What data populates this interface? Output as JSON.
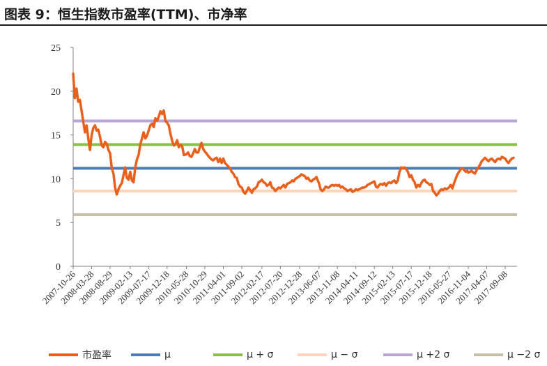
{
  "header": {
    "title": "图表 9：恒生指数市盈率(TTM)、市净率"
  },
  "chart_data": {
    "type": "line",
    "ylim": [
      0,
      25
    ],
    "yticks": [
      "0",
      "5",
      "10",
      "15",
      "20",
      "25"
    ],
    "x_tick_labels": [
      "2007-10-26",
      "2008-03-28",
      "2008-08-29",
      "2009-02-13",
      "2009-07-17",
      "2009-12-18",
      "2010-05-28",
      "2010-10-29",
      "2011-04-01",
      "2011-09-02",
      "2012-02-17",
      "2012-07-20",
      "2012-12-28",
      "2013-06-07",
      "2013-11-08",
      "2014-04-11",
      "2014-09-12",
      "2015-02-13",
      "2015-07-17",
      "2015-12-18",
      "2016-05-27",
      "2016-11-04",
      "2017-04-07",
      "2017-09-08"
    ],
    "series": [
      {
        "name": "市盈率",
        "color": "#e8601c",
        "points": [
          [
            "2007-10-26",
            22.0
          ],
          [
            "2007-11-09",
            19.2
          ],
          [
            "2007-11-23",
            20.3
          ],
          [
            "2007-12-07",
            18.8
          ],
          [
            "2007-12-21",
            19.0
          ],
          [
            "2008-01-04",
            17.8
          ],
          [
            "2008-01-18",
            16.6
          ],
          [
            "2008-02-01",
            15.3
          ],
          [
            "2008-02-15",
            16.1
          ],
          [
            "2008-02-29",
            14.6
          ],
          [
            "2008-03-14",
            13.3
          ],
          [
            "2008-03-28",
            15.0
          ],
          [
            "2008-04-11",
            15.8
          ],
          [
            "2008-04-25",
            16.1
          ],
          [
            "2008-05-09",
            15.5
          ],
          [
            "2008-05-23",
            15.6
          ],
          [
            "2008-06-06",
            14.8
          ],
          [
            "2008-06-20",
            13.8
          ],
          [
            "2008-07-04",
            13.6
          ],
          [
            "2008-07-18",
            14.2
          ],
          [
            "2008-08-01",
            14.0
          ],
          [
            "2008-08-15",
            13.3
          ],
          [
            "2008-08-29",
            12.9
          ],
          [
            "2008-09-12",
            11.2
          ],
          [
            "2008-09-26",
            10.6
          ],
          [
            "2008-10-10",
            9.0
          ],
          [
            "2008-10-24",
            8.2
          ],
          [
            "2008-11-07",
            8.8
          ],
          [
            "2008-11-21",
            9.2
          ],
          [
            "2008-12-05",
            9.5
          ],
          [
            "2008-12-19",
            10.4
          ],
          [
            "2009-01-02",
            11.3
          ],
          [
            "2009-01-16",
            10.1
          ],
          [
            "2009-01-30",
            9.9
          ],
          [
            "2009-02-13",
            10.8
          ],
          [
            "2009-02-27",
            9.8
          ],
          [
            "2009-03-13",
            9.6
          ],
          [
            "2009-03-27",
            11.3
          ],
          [
            "2009-04-10",
            12.2
          ],
          [
            "2009-04-24",
            12.7
          ],
          [
            "2009-05-08",
            13.9
          ],
          [
            "2009-05-22",
            14.6
          ],
          [
            "2009-06-05",
            15.3
          ],
          [
            "2009-06-19",
            14.6
          ],
          [
            "2009-07-03",
            14.9
          ],
          [
            "2009-07-17",
            15.5
          ],
          [
            "2009-07-31",
            16.1
          ],
          [
            "2009-08-14",
            16.3
          ],
          [
            "2009-08-28",
            15.9
          ],
          [
            "2009-09-11",
            16.9
          ],
          [
            "2009-09-25",
            16.6
          ],
          [
            "2009-10-09",
            17.1
          ],
          [
            "2009-10-23",
            17.7
          ],
          [
            "2009-11-06",
            17.4
          ],
          [
            "2009-11-20",
            17.8
          ],
          [
            "2009-12-04",
            16.6
          ],
          [
            "2009-12-18",
            16.4
          ],
          [
            "2010-01-01",
            16.1
          ],
          [
            "2010-01-15",
            15.1
          ],
          [
            "2010-01-29",
            14.3
          ],
          [
            "2010-02-12",
            13.8
          ],
          [
            "2010-02-26",
            14.0
          ],
          [
            "2010-03-12",
            14.4
          ],
          [
            "2010-03-26",
            13.6
          ],
          [
            "2010-04-09",
            13.9
          ],
          [
            "2010-04-23",
            13.7
          ],
          [
            "2010-05-07",
            12.7
          ],
          [
            "2010-05-28",
            12.8
          ],
          [
            "2010-06-11",
            13.0
          ],
          [
            "2010-06-25",
            12.6
          ],
          [
            "2010-07-09",
            12.5
          ],
          [
            "2010-07-23",
            12.9
          ],
          [
            "2010-08-06",
            13.4
          ],
          [
            "2010-08-20",
            13.0
          ],
          [
            "2010-09-03",
            13.0
          ],
          [
            "2010-09-17",
            13.6
          ],
          [
            "2010-10-01",
            14.1
          ],
          [
            "2010-10-15",
            13.4
          ],
          [
            "2010-10-29",
            13.1
          ],
          [
            "2010-11-12",
            12.9
          ],
          [
            "2010-11-26",
            12.6
          ],
          [
            "2010-12-10",
            12.4
          ],
          [
            "2010-12-24",
            12.2
          ],
          [
            "2011-01-07",
            12.1
          ],
          [
            "2011-01-21",
            12.3
          ],
          [
            "2011-02-04",
            12.4
          ],
          [
            "2011-02-18",
            11.9
          ],
          [
            "2011-03-04",
            12.3
          ],
          [
            "2011-03-18",
            11.8
          ],
          [
            "2011-04-01",
            12.3
          ],
          [
            "2011-04-15",
            11.8
          ],
          [
            "2011-04-29",
            11.6
          ],
          [
            "2011-05-13",
            11.4
          ],
          [
            "2011-05-27",
            11.2
          ],
          [
            "2011-06-10",
            10.8
          ],
          [
            "2011-06-24",
            10.6
          ],
          [
            "2011-07-08",
            10.2
          ],
          [
            "2011-07-22",
            10.1
          ],
          [
            "2011-08-05",
            9.4
          ],
          [
            "2011-08-19",
            9.1
          ],
          [
            "2011-09-02",
            9.0
          ],
          [
            "2011-09-16",
            8.5
          ],
          [
            "2011-09-30",
            8.3
          ],
          [
            "2011-10-14",
            8.6
          ],
          [
            "2011-10-28",
            9.0
          ],
          [
            "2011-11-11",
            8.7
          ],
          [
            "2011-11-25",
            8.4
          ],
          [
            "2011-12-09",
            8.8
          ],
          [
            "2011-12-23",
            8.9
          ],
          [
            "2012-01-06",
            9.1
          ],
          [
            "2012-01-20",
            9.6
          ],
          [
            "2012-02-03",
            9.7
          ],
          [
            "2012-02-17",
            9.9
          ],
          [
            "2012-03-02",
            9.6
          ],
          [
            "2012-03-16",
            9.5
          ],
          [
            "2012-03-30",
            9.2
          ],
          [
            "2012-04-13",
            9.3
          ],
          [
            "2012-04-27",
            9.6
          ],
          [
            "2012-05-11",
            9.0
          ],
          [
            "2012-05-25",
            8.9
          ],
          [
            "2012-06-08",
            8.6
          ],
          [
            "2012-06-22",
            8.8
          ],
          [
            "2012-07-06",
            9.0
          ],
          [
            "2012-07-20",
            8.9
          ],
          [
            "2012-08-03",
            9.1
          ],
          [
            "2012-08-17",
            9.3
          ],
          [
            "2012-08-31",
            9.0
          ],
          [
            "2012-09-14",
            9.4
          ],
          [
            "2012-09-28",
            9.5
          ],
          [
            "2012-10-12",
            9.6
          ],
          [
            "2012-10-26",
            9.8
          ],
          [
            "2012-11-09",
            9.7
          ],
          [
            "2012-11-23",
            10.0
          ],
          [
            "2012-12-07",
            10.1
          ],
          [
            "2012-12-28",
            10.3
          ],
          [
            "2013-01-11",
            10.5
          ],
          [
            "2013-01-25",
            10.4
          ],
          [
            "2013-02-08",
            10.3
          ],
          [
            "2013-02-22",
            10.0
          ],
          [
            "2013-03-08",
            10.1
          ],
          [
            "2013-03-22",
            9.8
          ],
          [
            "2013-04-05",
            9.7
          ],
          [
            "2013-04-19",
            9.9
          ],
          [
            "2013-05-03",
            10.0
          ],
          [
            "2013-05-17",
            10.2
          ],
          [
            "2013-06-07",
            9.5
          ],
          [
            "2013-06-21",
            8.8
          ],
          [
            "2013-07-05",
            8.6
          ],
          [
            "2013-07-19",
            8.8
          ],
          [
            "2013-08-02",
            9.1
          ],
          [
            "2013-08-16",
            9.0
          ],
          [
            "2013-08-30",
            9.0
          ],
          [
            "2013-09-13",
            9.2
          ],
          [
            "2013-09-27",
            9.3
          ],
          [
            "2013-10-11",
            9.2
          ],
          [
            "2013-10-25",
            9.3
          ],
          [
            "2013-11-08",
            9.2
          ],
          [
            "2013-11-22",
            9.3
          ],
          [
            "2013-12-06",
            9.0
          ],
          [
            "2013-12-20",
            9.1
          ],
          [
            "2014-01-03",
            8.9
          ],
          [
            "2014-01-17",
            8.8
          ],
          [
            "2014-01-31",
            8.6
          ],
          [
            "2014-02-14",
            8.7
          ],
          [
            "2014-02-28",
            8.8
          ],
          [
            "2014-03-14",
            8.5
          ],
          [
            "2014-03-28",
            8.6
          ],
          [
            "2014-04-11",
            8.8
          ],
          [
            "2014-04-25",
            8.7
          ],
          [
            "2014-05-09",
            8.8
          ],
          [
            "2014-05-23",
            8.9
          ],
          [
            "2014-06-06",
            9.0
          ],
          [
            "2014-06-20",
            9.0
          ],
          [
            "2014-07-04",
            9.1
          ],
          [
            "2014-07-18",
            9.3
          ],
          [
            "2014-08-01",
            9.4
          ],
          [
            "2014-08-15",
            9.5
          ],
          [
            "2014-08-29",
            9.6
          ],
          [
            "2014-09-12",
            9.7
          ],
          [
            "2014-09-26",
            9.1
          ],
          [
            "2014-10-10",
            9.0
          ],
          [
            "2014-10-24",
            9.3
          ],
          [
            "2014-11-07",
            9.4
          ],
          [
            "2014-11-21",
            9.3
          ],
          [
            "2014-12-05",
            9.5
          ],
          [
            "2014-12-19",
            9.2
          ],
          [
            "2015-01-02",
            9.5
          ],
          [
            "2015-01-16",
            9.6
          ],
          [
            "2015-01-30",
            9.5
          ],
          [
            "2015-02-13",
            9.7
          ],
          [
            "2015-02-27",
            9.8
          ],
          [
            "2015-03-13",
            9.5
          ],
          [
            "2015-03-27",
            9.8
          ],
          [
            "2015-04-10",
            10.8
          ],
          [
            "2015-04-24",
            11.3
          ],
          [
            "2015-05-08",
            11.2
          ],
          [
            "2015-05-22",
            11.3
          ],
          [
            "2015-06-05",
            11.1
          ],
          [
            "2015-06-19",
            10.8
          ],
          [
            "2015-07-03",
            10.2
          ],
          [
            "2015-07-17",
            10.4
          ],
          [
            "2015-07-31",
            9.9
          ],
          [
            "2015-08-14",
            9.6
          ],
          [
            "2015-08-28",
            9.0
          ],
          [
            "2015-09-11",
            9.3
          ],
          [
            "2015-09-25",
            9.1
          ],
          [
            "2015-10-09",
            9.5
          ],
          [
            "2015-10-23",
            9.8
          ],
          [
            "2015-11-06",
            9.9
          ],
          [
            "2015-11-20",
            9.6
          ],
          [
            "2015-12-04",
            9.5
          ],
          [
            "2015-12-18",
            9.3
          ],
          [
            "2016-01-01",
            9.4
          ],
          [
            "2016-01-15",
            8.6
          ],
          [
            "2016-01-29",
            8.4
          ],
          [
            "2016-02-12",
            8.1
          ],
          [
            "2016-02-26",
            8.3
          ],
          [
            "2016-03-11",
            8.6
          ],
          [
            "2016-03-25",
            8.8
          ],
          [
            "2016-04-08",
            8.7
          ],
          [
            "2016-04-22",
            8.9
          ],
          [
            "2016-05-06",
            8.8
          ],
          [
            "2016-05-27",
            9.0
          ],
          [
            "2016-06-10",
            9.3
          ],
          [
            "2016-06-24",
            8.9
          ],
          [
            "2016-07-08",
            9.5
          ],
          [
            "2016-07-22",
            10.0
          ],
          [
            "2016-08-05",
            10.5
          ],
          [
            "2016-08-19",
            10.8
          ],
          [
            "2016-09-02",
            11.1
          ],
          [
            "2016-09-16",
            11.2
          ],
          [
            "2016-09-30",
            11.0
          ],
          [
            "2016-10-14",
            10.8
          ],
          [
            "2016-10-28",
            10.9
          ],
          [
            "2016-11-04",
            10.7
          ],
          [
            "2016-11-18",
            10.8
          ],
          [
            "2016-12-02",
            10.9
          ],
          [
            "2016-12-16",
            10.7
          ],
          [
            "2016-12-30",
            10.6
          ],
          [
            "2017-01-13",
            11.0
          ],
          [
            "2017-01-27",
            11.3
          ],
          [
            "2017-02-10",
            11.6
          ],
          [
            "2017-02-24",
            12.0
          ],
          [
            "2017-03-10",
            12.2
          ],
          [
            "2017-03-24",
            12.4
          ],
          [
            "2017-04-07",
            12.2
          ],
          [
            "2017-04-21",
            12.0
          ],
          [
            "2017-05-05",
            12.2
          ],
          [
            "2017-05-19",
            12.3
          ],
          [
            "2017-06-02",
            12.1
          ],
          [
            "2017-06-16",
            11.9
          ],
          [
            "2017-06-30",
            12.2
          ],
          [
            "2017-07-14",
            12.3
          ],
          [
            "2017-07-28",
            12.2
          ],
          [
            "2017-08-11",
            12.5
          ],
          [
            "2017-08-25",
            12.4
          ],
          [
            "2017-09-08",
            12.3
          ],
          [
            "2017-09-22",
            12.0
          ],
          [
            "2017-10-06",
            11.8
          ],
          [
            "2017-10-20",
            12.1
          ],
          [
            "2017-11-03",
            12.3
          ],
          [
            "2017-11-17",
            12.4
          ]
        ]
      },
      {
        "name": "μ",
        "color": "#4a7ebb",
        "value": 11.2
      },
      {
        "name": "μ + σ",
        "color": "#8dbe4a",
        "value": 13.9
      },
      {
        "name": "μ − σ",
        "color": "#fad4bc",
        "value": 8.6
      },
      {
        "name": "μ +2 σ",
        "color": "#b7a6d1",
        "value": 16.6
      },
      {
        "name": "μ −2 σ",
        "color": "#c5bfa5",
        "value": 5.9
      }
    ]
  },
  "legend": [
    {
      "label": "市盈率",
      "color": "#e8601c"
    },
    {
      "label": "μ",
      "color": "#4a7ebb"
    },
    {
      "label": "μ + σ",
      "color": "#8dbe4a"
    },
    {
      "label": "μ − σ",
      "color": "#fad4bc"
    },
    {
      "label": "μ +2 σ",
      "color": "#b7a6d1"
    },
    {
      "label": "μ −2 σ",
      "color": "#c5bfa5"
    }
  ]
}
